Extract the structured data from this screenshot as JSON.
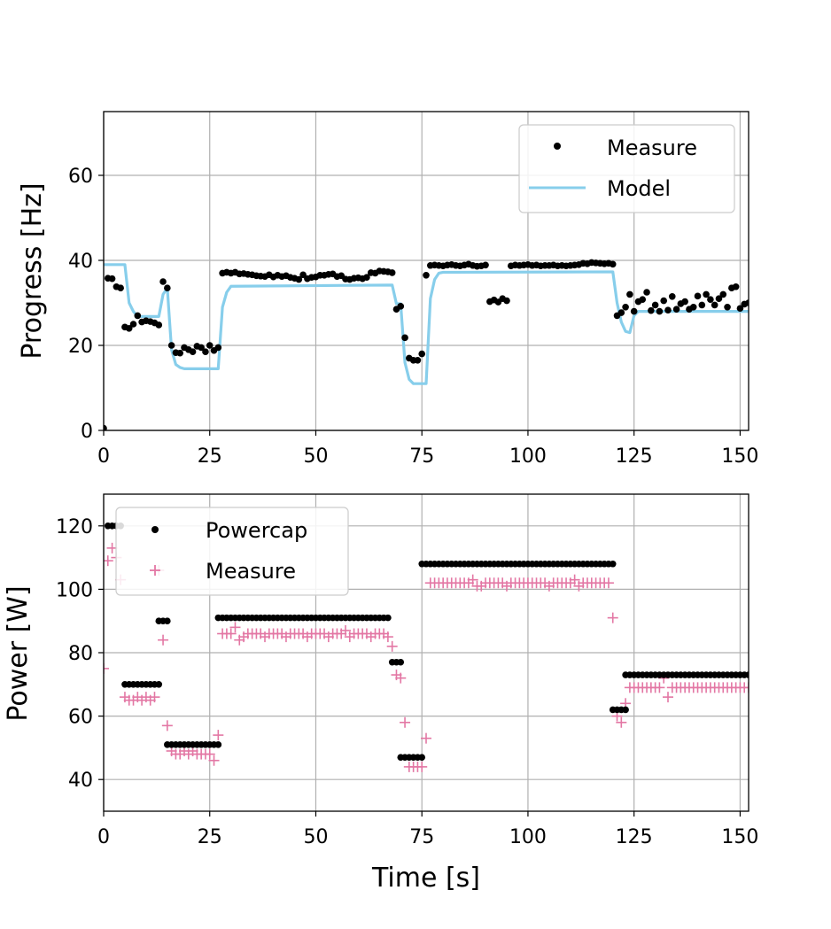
{
  "colors": {
    "measure_dot": "#000000",
    "model_line": "#87ceeb",
    "powercap_dot": "#000000",
    "measure_plus": "#e377a4",
    "grid": "#b0b0b0"
  },
  "chart_data": [
    {
      "type": "line",
      "id": "progress",
      "title": "",
      "xlabel": "",
      "ylabel": "Progress [Hz]",
      "xlim": [
        0,
        152
      ],
      "ylim": [
        0,
        75
      ],
      "xticks": [
        0,
        25,
        50,
        75,
        100,
        125,
        150
      ],
      "xtick_labels": [
        "0",
        "25",
        "50",
        "75",
        "100",
        "125",
        "150"
      ],
      "yticks": [
        0,
        20,
        40,
        60
      ],
      "ytick_labels": [
        "0",
        "20",
        "40",
        "60"
      ],
      "grid": true,
      "legend_position": "top-right",
      "series": [
        {
          "name": "Measure",
          "style": "dots",
          "x": [
            0,
            1,
            2,
            3,
            4,
            5,
            6,
            7,
            8,
            9,
            10,
            11,
            12,
            13,
            14,
            15,
            16,
            17,
            18,
            19,
            20,
            21,
            22,
            23,
            24,
            25,
            26,
            27,
            28,
            29,
            30,
            31,
            32,
            33,
            34,
            35,
            36,
            37,
            38,
            39,
            40,
            41,
            42,
            43,
            44,
            45,
            46,
            47,
            48,
            49,
            50,
            51,
            52,
            53,
            54,
            55,
            56,
            57,
            58,
            59,
            60,
            61,
            62,
            63,
            64,
            65,
            66,
            67,
            68,
            69,
            70,
            71,
            72,
            73,
            74,
            75,
            76,
            77,
            78,
            79,
            80,
            81,
            82,
            83,
            84,
            85,
            86,
            87,
            88,
            89,
            90,
            91,
            92,
            93,
            94,
            95,
            96,
            97,
            98,
            99,
            100,
            101,
            102,
            103,
            104,
            105,
            106,
            107,
            108,
            109,
            110,
            111,
            112,
            113,
            114,
            115,
            116,
            117,
            118,
            119,
            120,
            121,
            122,
            123,
            124,
            125,
            126,
            127,
            128,
            129,
            130,
            131,
            132,
            133,
            134,
            135,
            136,
            137,
            138,
            139,
            140,
            141,
            142,
            143,
            144,
            145,
            146,
            147,
            148,
            149,
            150,
            151,
            152
          ],
          "y": [
            0.5,
            35.8,
            35.7,
            33.8,
            33.5,
            24.3,
            24.0,
            25.0,
            27.0,
            25.5,
            25.8,
            25.6,
            25.3,
            24.8,
            35.0,
            33.5,
            20.0,
            18.3,
            18.2,
            19.5,
            19.0,
            18.5,
            19.8,
            19.5,
            18.5,
            20.0,
            18.8,
            19.5,
            37.0,
            37.2,
            37.0,
            37.2,
            36.8,
            36.9,
            36.7,
            36.6,
            36.4,
            36.3,
            36.2,
            36.6,
            36.1,
            36.5,
            36.2,
            36.4,
            36.0,
            35.8,
            35.5,
            36.6,
            35.7,
            36.0,
            36.1,
            36.5,
            36.5,
            36.7,
            36.8,
            36.2,
            36.4,
            35.6,
            35.5,
            35.8,
            35.9,
            35.7,
            36.0,
            37.1,
            37.0,
            37.5,
            37.4,
            37.3,
            37.1,
            28.5,
            29.2,
            21.8,
            17.0,
            16.5,
            16.5,
            18.0,
            36.5,
            38.8,
            38.9,
            38.8,
            38.7,
            38.9,
            39.0,
            38.8,
            38.7,
            38.9,
            39.1,
            38.8,
            38.6,
            38.7,
            38.9,
            30.3,
            30.7,
            30.2,
            31.0,
            30.5,
            38.7,
            38.9,
            38.8,
            38.9,
            39.0,
            38.8,
            38.9,
            38.7,
            38.8,
            38.8,
            38.9,
            38.7,
            38.8,
            38.7,
            38.8,
            38.9,
            39.0,
            39.3,
            39.2,
            39.5,
            39.4,
            39.3,
            39.2,
            39.3,
            39.1,
            27.0,
            27.7,
            29.0,
            32.0,
            28.0,
            30.3,
            30.8,
            32.5,
            28.2,
            29.5,
            28.0,
            30.5,
            28.3,
            31.5,
            28.5,
            29.8,
            30.3,
            28.5,
            29.0,
            31.6,
            29.5,
            32.0,
            30.8,
            29.5,
            31.0,
            32.0,
            29.0,
            33.5,
            33.8,
            28.7,
            29.7,
            30.0
          ],
          "color_key": "measure_dot"
        },
        {
          "name": "Model",
          "style": "line",
          "x": [
            0,
            5,
            6,
            7,
            8,
            13,
            14,
            15,
            16,
            17,
            18,
            19,
            20,
            27,
            28,
            29,
            30,
            68,
            69,
            70,
            71,
            72,
            73,
            74,
            75,
            76,
            77,
            78,
            79,
            80,
            120,
            121,
            122,
            123,
            124,
            125,
            126,
            152
          ],
          "y": [
            39,
            39,
            30,
            28,
            26.8,
            26.8,
            32,
            33.5,
            19,
            15.5,
            14.8,
            14.5,
            14.5,
            14.5,
            29,
            32.5,
            33.9,
            34.2,
            29.8,
            29.8,
            16,
            12,
            11,
            11,
            11,
            11,
            31,
            35.5,
            37,
            37.2,
            37.3,
            30,
            25.5,
            23.3,
            23,
            27,
            28,
            28
          ],
          "color_key": "model_line"
        }
      ]
    },
    {
      "type": "scatter",
      "id": "power",
      "title": "",
      "xlabel": "Time [s]",
      "ylabel": "Power [W]",
      "xlim": [
        0,
        152
      ],
      "ylim": [
        30,
        130
      ],
      "xticks": [
        0,
        25,
        50,
        75,
        100,
        125,
        150
      ],
      "xtick_labels": [
        "0",
        "25",
        "50",
        "75",
        "100",
        "125",
        "150"
      ],
      "yticks": [
        40,
        60,
        80,
        100,
        120
      ],
      "ytick_labels": [
        "40",
        "60",
        "80",
        "100",
        "120"
      ],
      "grid": true,
      "legend_position": "top-left",
      "series": [
        {
          "name": "Powercap",
          "style": "dots",
          "segments": [
            {
              "x_start": 1,
              "x_end": 4,
              "y": 120
            },
            {
              "x_start": 5,
              "x_end": 13,
              "y": 70
            },
            {
              "x_start": 13,
              "x_end": 15,
              "y": 90
            },
            {
              "x_start": 15,
              "x_end": 27,
              "y": 51
            },
            {
              "x_start": 27,
              "x_end": 67,
              "y": 91
            },
            {
              "x_start": 68,
              "x_end": 70,
              "y": 77
            },
            {
              "x_start": 70,
              "x_end": 75,
              "y": 47
            },
            {
              "x_start": 75,
              "x_end": 120,
              "y": 108
            },
            {
              "x_start": 120,
              "x_end": 123,
              "y": 62
            },
            {
              "x_start": 123,
              "x_end": 152,
              "y": 73
            }
          ],
          "color_key": "powercap_dot"
        },
        {
          "name": "Measure",
          "style": "plus",
          "x": [
            0,
            1,
            2,
            3,
            4,
            5,
            6,
            7,
            8,
            9,
            10,
            11,
            12,
            13,
            14,
            15,
            16,
            17,
            18,
            19,
            20,
            21,
            22,
            23,
            24,
            25,
            26,
            27,
            28,
            29,
            30,
            31,
            32,
            33,
            34,
            35,
            36,
            37,
            38,
            39,
            40,
            41,
            42,
            43,
            44,
            45,
            46,
            47,
            48,
            49,
            50,
            51,
            52,
            53,
            54,
            55,
            56,
            57,
            58,
            59,
            60,
            61,
            62,
            63,
            64,
            65,
            66,
            67,
            68,
            69,
            70,
            71,
            72,
            73,
            74,
            75,
            76,
            77,
            78,
            79,
            80,
            81,
            82,
            83,
            84,
            85,
            86,
            87,
            88,
            89,
            90,
            91,
            92,
            93,
            94,
            95,
            96,
            97,
            98,
            99,
            100,
            101,
            102,
            103,
            104,
            105,
            106,
            107,
            108,
            109,
            110,
            111,
            112,
            113,
            114,
            115,
            116,
            117,
            118,
            119,
            120,
            121,
            122,
            123,
            124,
            125,
            126,
            127,
            128,
            129,
            130,
            131,
            132,
            133,
            134,
            135,
            136,
            137,
            138,
            139,
            140,
            141,
            142,
            143,
            144,
            145,
            146,
            147,
            148,
            149,
            150,
            151,
            152
          ],
          "y": [
            75,
            109,
            113,
            110,
            103,
            66,
            65,
            65,
            66,
            65,
            66,
            65,
            66,
            106,
            84,
            57,
            49,
            48,
            48,
            49,
            48,
            49,
            48,
            48,
            48,
            48,
            46,
            54,
            86,
            86,
            86,
            88,
            84,
            85,
            86,
            86,
            86,
            86,
            85,
            86,
            86,
            86,
            86,
            85,
            86,
            86,
            86,
            86,
            85,
            86,
            86,
            86,
            86,
            85,
            86,
            86,
            86,
            87,
            85,
            86,
            86,
            86,
            86,
            85,
            86,
            86,
            86,
            85,
            82,
            73,
            72,
            58,
            44,
            44,
            44,
            44,
            53,
            102,
            102,
            102,
            102,
            102,
            102,
            102,
            102,
            102,
            102,
            103,
            101,
            101,
            102,
            102,
            102,
            102,
            102,
            101,
            102,
            102,
            102,
            102,
            102,
            102,
            102,
            102,
            102,
            101,
            102,
            102,
            102,
            102,
            102,
            103,
            101,
            102,
            102,
            102,
            102,
            102,
            102,
            102,
            91,
            60,
            58,
            64,
            69,
            69,
            69,
            69,
            69,
            69,
            69,
            69,
            72,
            66,
            69,
            69,
            69,
            69,
            69,
            69,
            69,
            69,
            69,
            69,
            69,
            69,
            69,
            69,
            69,
            69,
            69,
            69,
            69
          ],
          "color_key": "measure_plus"
        }
      ]
    }
  ]
}
